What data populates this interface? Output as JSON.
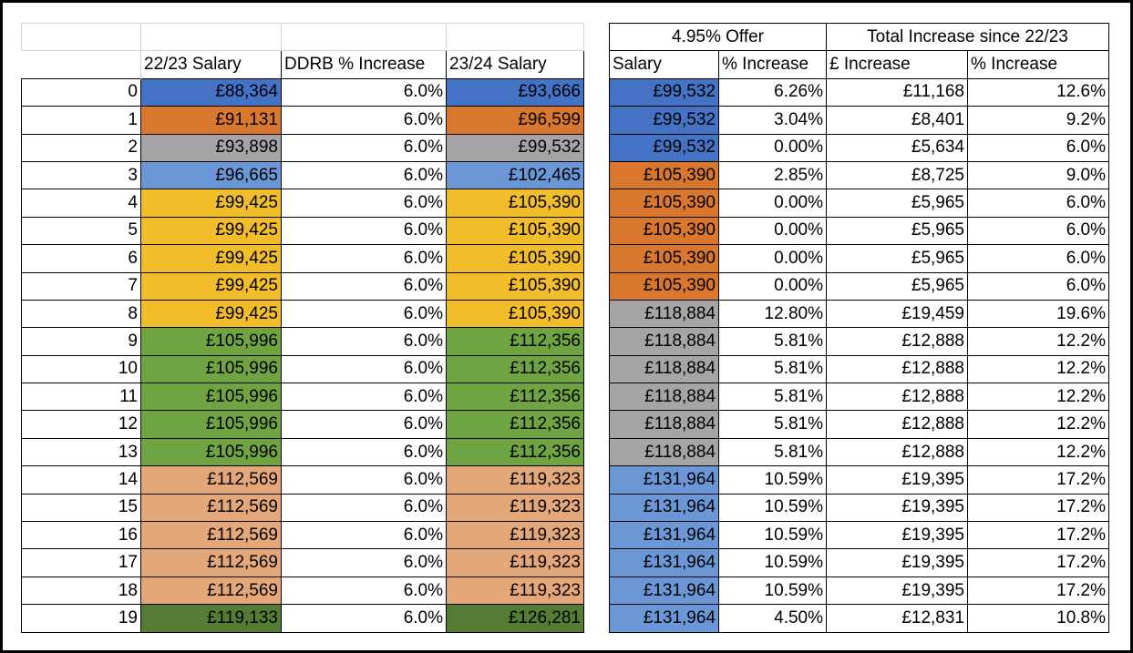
{
  "colors": {
    "blue": "#4472c4",
    "orange": "#d9772f",
    "gray": "#a5a5a5",
    "lightblue": "#6b97d6",
    "yellow": "#f1bd2a",
    "green": "#70a342",
    "peach": "#e4a77a",
    "darkgreen": "#557c34"
  },
  "left_headers": [
    "",
    "22/23 Salary",
    "DDRB % Increase",
    "23/24 Salary"
  ],
  "right_group_headers": [
    "4.95% Offer",
    "Total Increase since 22/23"
  ],
  "right_headers": [
    "Salary",
    "% Increase",
    "£ Increase",
    "% Increase"
  ],
  "rows": [
    {
      "idx": "0",
      "s2223": "£88,364",
      "s2223_color": "blue",
      "ddrb": "6.0%",
      "s2324": "£93,666",
      "s2324_color": "blue",
      "offer": "£99,532",
      "offer_color": "blue",
      "pct": "6.26%",
      "inc": "£11,168",
      "total_pct": "12.6%"
    },
    {
      "idx": "1",
      "s2223": "£91,131",
      "s2223_color": "orange",
      "ddrb": "6.0%",
      "s2324": "£96,599",
      "s2324_color": "orange",
      "offer": "£99,532",
      "offer_color": "blue",
      "pct": "3.04%",
      "inc": "£8,401",
      "total_pct": "9.2%"
    },
    {
      "idx": "2",
      "s2223": "£93,898",
      "s2223_color": "gray",
      "ddrb": "6.0%",
      "s2324": "£99,532",
      "s2324_color": "gray",
      "offer": "£99,532",
      "offer_color": "blue",
      "pct": "0.00%",
      "inc": "£5,634",
      "total_pct": "6.0%"
    },
    {
      "idx": "3",
      "s2223": "£96,665",
      "s2223_color": "lightblue",
      "ddrb": "6.0%",
      "s2324": "£102,465",
      "s2324_color": "lightblue",
      "offer": "£105,390",
      "offer_color": "orange",
      "pct": "2.85%",
      "inc": "£8,725",
      "total_pct": "9.0%"
    },
    {
      "idx": "4",
      "s2223": "£99,425",
      "s2223_color": "yellow",
      "ddrb": "6.0%",
      "s2324": "£105,390",
      "s2324_color": "yellow",
      "offer": "£105,390",
      "offer_color": "orange",
      "pct": "0.00%",
      "inc": "£5,965",
      "total_pct": "6.0%"
    },
    {
      "idx": "5",
      "s2223": "£99,425",
      "s2223_color": "yellow",
      "ddrb": "6.0%",
      "s2324": "£105,390",
      "s2324_color": "yellow",
      "offer": "£105,390",
      "offer_color": "orange",
      "pct": "0.00%",
      "inc": "£5,965",
      "total_pct": "6.0%"
    },
    {
      "idx": "6",
      "s2223": "£99,425",
      "s2223_color": "yellow",
      "ddrb": "6.0%",
      "s2324": "£105,390",
      "s2324_color": "yellow",
      "offer": "£105,390",
      "offer_color": "orange",
      "pct": "0.00%",
      "inc": "£5,965",
      "total_pct": "6.0%"
    },
    {
      "idx": "7",
      "s2223": "£99,425",
      "s2223_color": "yellow",
      "ddrb": "6.0%",
      "s2324": "£105,390",
      "s2324_color": "yellow",
      "offer": "£105,390",
      "offer_color": "orange",
      "pct": "0.00%",
      "inc": "£5,965",
      "total_pct": "6.0%"
    },
    {
      "idx": "8",
      "s2223": "£99,425",
      "s2223_color": "yellow",
      "ddrb": "6.0%",
      "s2324": "£105,390",
      "s2324_color": "yellow",
      "offer": "£118,884",
      "offer_color": "gray",
      "pct": "12.80%",
      "inc": "£19,459",
      "total_pct": "19.6%"
    },
    {
      "idx": "9",
      "s2223": "£105,996",
      "s2223_color": "green",
      "ddrb": "6.0%",
      "s2324": "£112,356",
      "s2324_color": "green",
      "offer": "£118,884",
      "offer_color": "gray",
      "pct": "5.81%",
      "inc": "£12,888",
      "total_pct": "12.2%"
    },
    {
      "idx": "10",
      "s2223": "£105,996",
      "s2223_color": "green",
      "ddrb": "6.0%",
      "s2324": "£112,356",
      "s2324_color": "green",
      "offer": "£118,884",
      "offer_color": "gray",
      "pct": "5.81%",
      "inc": "£12,888",
      "total_pct": "12.2%"
    },
    {
      "idx": "11",
      "s2223": "£105,996",
      "s2223_color": "green",
      "ddrb": "6.0%",
      "s2324": "£112,356",
      "s2324_color": "green",
      "offer": "£118,884",
      "offer_color": "gray",
      "pct": "5.81%",
      "inc": "£12,888",
      "total_pct": "12.2%"
    },
    {
      "idx": "12",
      "s2223": "£105,996",
      "s2223_color": "green",
      "ddrb": "6.0%",
      "s2324": "£112,356",
      "s2324_color": "green",
      "offer": "£118,884",
      "offer_color": "gray",
      "pct": "5.81%",
      "inc": "£12,888",
      "total_pct": "12.2%"
    },
    {
      "idx": "13",
      "s2223": "£105,996",
      "s2223_color": "green",
      "ddrb": "6.0%",
      "s2324": "£112,356",
      "s2324_color": "green",
      "offer": "£118,884",
      "offer_color": "gray",
      "pct": "5.81%",
      "inc": "£12,888",
      "total_pct": "12.2%"
    },
    {
      "idx": "14",
      "s2223": "£112,569",
      "s2223_color": "peach",
      "ddrb": "6.0%",
      "s2324": "£119,323",
      "s2324_color": "peach",
      "offer": "£131,964",
      "offer_color": "lightblue",
      "pct": "10.59%",
      "inc": "£19,395",
      "total_pct": "17.2%"
    },
    {
      "idx": "15",
      "s2223": "£112,569",
      "s2223_color": "peach",
      "ddrb": "6.0%",
      "s2324": "£119,323",
      "s2324_color": "peach",
      "offer": "£131,964",
      "offer_color": "lightblue",
      "pct": "10.59%",
      "inc": "£19,395",
      "total_pct": "17.2%"
    },
    {
      "idx": "16",
      "s2223": "£112,569",
      "s2223_color": "peach",
      "ddrb": "6.0%",
      "s2324": "£119,323",
      "s2324_color": "peach",
      "offer": "£131,964",
      "offer_color": "lightblue",
      "pct": "10.59%",
      "inc": "£19,395",
      "total_pct": "17.2%"
    },
    {
      "idx": "17",
      "s2223": "£112,569",
      "s2223_color": "peach",
      "ddrb": "6.0%",
      "s2324": "£119,323",
      "s2324_color": "peach",
      "offer": "£131,964",
      "offer_color": "lightblue",
      "pct": "10.59%",
      "inc": "£19,395",
      "total_pct": "17.2%"
    },
    {
      "idx": "18",
      "s2223": "£112,569",
      "s2223_color": "peach",
      "ddrb": "6.0%",
      "s2324": "£119,323",
      "s2324_color": "peach",
      "offer": "£131,964",
      "offer_color": "lightblue",
      "pct": "10.59%",
      "inc": "£19,395",
      "total_pct": "17.2%"
    },
    {
      "idx": "19",
      "s2223": "£119,133",
      "s2223_color": "darkgreen",
      "ddrb": "6.0%",
      "s2324": "£126,281",
      "s2324_color": "darkgreen",
      "offer": "£131,964",
      "offer_color": "lightblue",
      "pct": "4.50%",
      "inc": "£12,831",
      "total_pct": "10.8%"
    }
  ]
}
